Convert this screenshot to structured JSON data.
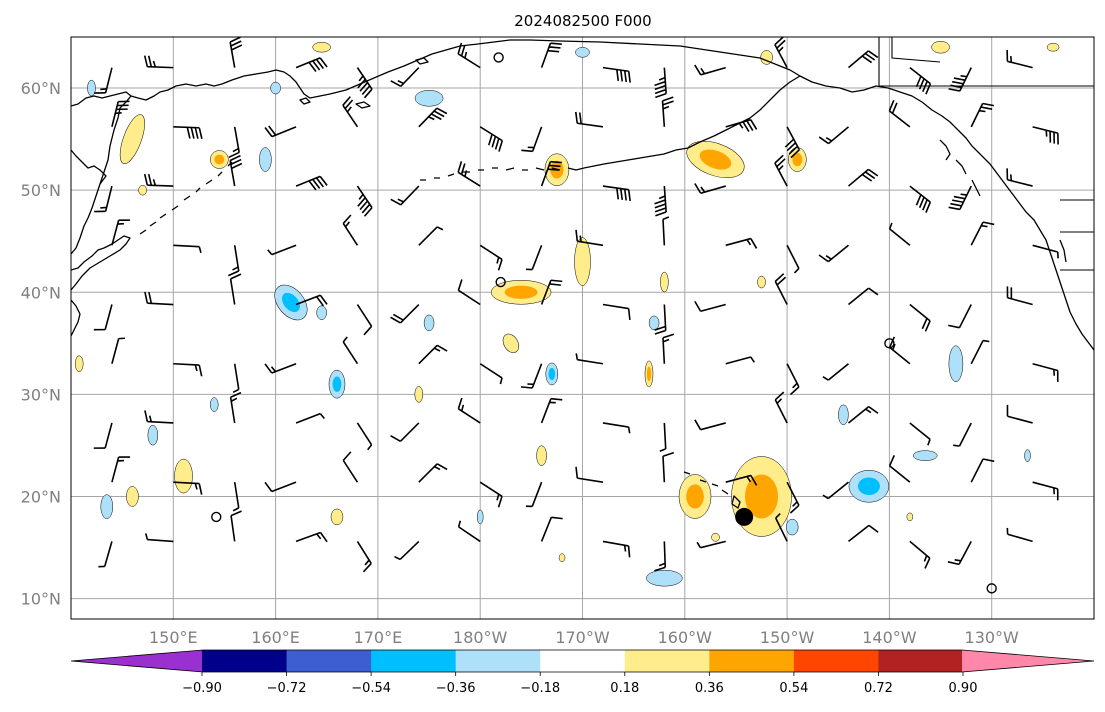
{
  "title": "2024082500 F000",
  "map": {
    "lat_labels": [
      "60°N",
      "50°N",
      "40°N",
      "30°N",
      "20°N",
      "10°N"
    ],
    "lat_values": [
      60,
      50,
      40,
      30,
      20,
      10
    ],
    "lon_labels": [
      "150°E",
      "160°E",
      "170°E",
      "180°W",
      "170°W",
      "160°W",
      "150°W",
      "140°W",
      "130°W"
    ],
    "lon_values": [
      150,
      160,
      170,
      180,
      190,
      200,
      210,
      220,
      230
    ],
    "extent": {
      "lon_min": 140,
      "lon_max": 240,
      "lat_min": 8,
      "lat_max": 65
    },
    "grid": true,
    "storm_marker": {
      "lon": 205.8,
      "lat": 18
    },
    "calm_points": [
      {
        "lon": 182,
        "lat": 41
      },
      {
        "lon": 154.2,
        "lat": 18
      },
      {
        "lon": 220,
        "lat": 35
      },
      {
        "lon": 181.8,
        "lat": 63
      },
      {
        "lon": 230,
        "lat": 11
      }
    ]
  },
  "colorbar": {
    "levels": [
      "−0.90",
      "−0.72",
      "−0.54",
      "−0.36",
      "−0.18",
      "0.18",
      "0.36",
      "0.54",
      "0.72",
      "0.90"
    ],
    "colors": [
      "#9b30d0",
      "#00008b",
      "#3c5ed0",
      "#00bfff",
      "#aee0fa",
      "#ffffff",
      "#ffec8b",
      "#ffa500",
      "#ff4500",
      "#b22222",
      "#ff88aa"
    ],
    "extend": "both"
  },
  "colors": {
    "land_line": "#000000",
    "grid": "#a6a6a6",
    "axis_labels": "#808080"
  }
}
